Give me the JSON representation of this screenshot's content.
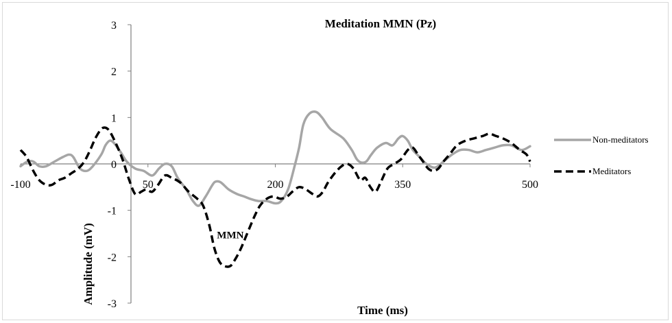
{
  "chart_data": {
    "type": "line",
    "title": "Meditation MMN (Pz)",
    "xlabel": "Time (ms)",
    "ylabel": "Amplitude (mV)",
    "xlim": [
      -100,
      500
    ],
    "ylim": [
      -3,
      3
    ],
    "x_ticks": [
      "-100",
      "50",
      "200",
      "350",
      "500"
    ],
    "x_tick_values": [
      -100,
      50,
      200,
      350,
      500
    ],
    "y_ticks": [
      "3",
      "2",
      "1",
      "0",
      "-1",
      "-2",
      "-3"
    ],
    "y_tick_values": [
      3,
      2,
      1,
      0,
      -1,
      -2,
      -3
    ],
    "grid": false,
    "legend_position": "right",
    "annotations": [
      {
        "text": "MMN",
        "x": 147,
        "y": -1.6
      }
    ],
    "series": [
      {
        "name": "Non-meditators",
        "color": "#a6a6a6",
        "style": "solid",
        "points": [
          [
            -100,
            -0.05
          ],
          [
            -92,
            0.05
          ],
          [
            -85,
            0.05
          ],
          [
            -78,
            -0.05
          ],
          [
            -70,
            -0.05
          ],
          [
            -60,
            0.05
          ],
          [
            -50,
            0.15
          ],
          [
            -43,
            0.2
          ],
          [
            -38,
            0.15
          ],
          [
            -30,
            -0.1
          ],
          [
            -22,
            -0.15
          ],
          [
            -15,
            -0.05
          ],
          [
            -5,
            0.2
          ],
          [
            0,
            0.4
          ],
          [
            5,
            0.5
          ],
          [
            10,
            0.45
          ],
          [
            18,
            0.25
          ],
          [
            25,
            0.05
          ],
          [
            35,
            -0.1
          ],
          [
            45,
            -0.15
          ],
          [
            55,
            -0.25
          ],
          [
            63,
            -0.1
          ],
          [
            70,
            0.0
          ],
          [
            78,
            -0.05
          ],
          [
            85,
            -0.3
          ],
          [
            95,
            -0.55
          ],
          [
            103,
            -0.8
          ],
          [
            110,
            -0.9
          ],
          [
            118,
            -0.7
          ],
          [
            126,
            -0.45
          ],
          [
            130,
            -0.38
          ],
          [
            136,
            -0.4
          ],
          [
            145,
            -0.55
          ],
          [
            155,
            -0.65
          ],
          [
            163,
            -0.7
          ],
          [
            170,
            -0.75
          ],
          [
            180,
            -0.8
          ],
          [
            190,
            -0.8
          ],
          [
            200,
            -0.85
          ],
          [
            207,
            -0.8
          ],
          [
            215,
            -0.55
          ],
          [
            222,
            -0.1
          ],
          [
            228,
            0.35
          ],
          [
            233,
            0.85
          ],
          [
            240,
            1.08
          ],
          [
            248,
            1.12
          ],
          [
            255,
            1.0
          ],
          [
            265,
            0.75
          ],
          [
            280,
            0.55
          ],
          [
            290,
            0.3
          ],
          [
            296,
            0.1
          ],
          [
            301,
            0.03
          ],
          [
            307,
            0.05
          ],
          [
            313,
            0.2
          ],
          [
            320,
            0.35
          ],
          [
            330,
            0.45
          ],
          [
            338,
            0.4
          ],
          [
            345,
            0.55
          ],
          [
            350,
            0.6
          ],
          [
            356,
            0.5
          ],
          [
            362,
            0.3
          ],
          [
            370,
            0.15
          ],
          [
            378,
            0.0
          ],
          [
            388,
            -0.08
          ],
          [
            398,
            0.05
          ],
          [
            408,
            0.2
          ],
          [
            418,
            0.3
          ],
          [
            428,
            0.3
          ],
          [
            438,
            0.25
          ],
          [
            448,
            0.3
          ],
          [
            458,
            0.35
          ],
          [
            468,
            0.4
          ],
          [
            478,
            0.4
          ],
          [
            490,
            0.3
          ],
          [
            500,
            0.38
          ]
        ]
      },
      {
        "name": "Meditators",
        "color": "#000000",
        "style": "dashed",
        "points": [
          [
            -100,
            0.3
          ],
          [
            -93,
            0.15
          ],
          [
            -85,
            -0.15
          ],
          [
            -78,
            -0.35
          ],
          [
            -70,
            -0.45
          ],
          [
            -63,
            -0.45
          ],
          [
            -55,
            -0.35
          ],
          [
            -48,
            -0.3
          ],
          [
            -40,
            -0.2
          ],
          [
            -32,
            -0.1
          ],
          [
            -25,
            0.05
          ],
          [
            -18,
            0.3
          ],
          [
            -12,
            0.55
          ],
          [
            -5,
            0.75
          ],
          [
            0,
            0.78
          ],
          [
            5,
            0.7
          ],
          [
            12,
            0.45
          ],
          [
            20,
            0.1
          ],
          [
            28,
            -0.35
          ],
          [
            35,
            -0.65
          ],
          [
            42,
            -0.6
          ],
          [
            48,
            -0.55
          ],
          [
            55,
            -0.6
          ],
          [
            62,
            -0.45
          ],
          [
            70,
            -0.25
          ],
          [
            78,
            -0.3
          ],
          [
            88,
            -0.4
          ],
          [
            98,
            -0.6
          ],
          [
            108,
            -0.75
          ],
          [
            115,
            -0.9
          ],
          [
            122,
            -1.3
          ],
          [
            128,
            -1.8
          ],
          [
            134,
            -2.1
          ],
          [
            140,
            -2.2
          ],
          [
            147,
            -2.2
          ],
          [
            153,
            -2.05
          ],
          [
            160,
            -1.8
          ],
          [
            168,
            -1.45
          ],
          [
            175,
            -1.15
          ],
          [
            182,
            -0.9
          ],
          [
            190,
            -0.75
          ],
          [
            198,
            -0.7
          ],
          [
            206,
            -0.75
          ],
          [
            214,
            -0.7
          ],
          [
            220,
            -0.6
          ],
          [
            228,
            -0.5
          ],
          [
            236,
            -0.55
          ],
          [
            244,
            -0.65
          ],
          [
            250,
            -0.7
          ],
          [
            256,
            -0.6
          ],
          [
            262,
            -0.4
          ],
          [
            270,
            -0.2
          ],
          [
            278,
            -0.05
          ],
          [
            285,
            0.0
          ],
          [
            292,
            -0.1
          ],
          [
            300,
            -0.35
          ],
          [
            306,
            -0.3
          ],
          [
            312,
            -0.5
          ],
          [
            318,
            -0.6
          ],
          [
            324,
            -0.4
          ],
          [
            332,
            -0.1
          ],
          [
            340,
            0.0
          ],
          [
            348,
            0.1
          ],
          [
            356,
            0.3
          ],
          [
            362,
            0.35
          ],
          [
            368,
            0.2
          ],
          [
            374,
            0.05
          ],
          [
            380,
            -0.1
          ],
          [
            386,
            -0.15
          ],
          [
            392,
            -0.1
          ],
          [
            398,
            0.05
          ],
          [
            405,
            0.2
          ],
          [
            414,
            0.4
          ],
          [
            424,
            0.5
          ],
          [
            434,
            0.55
          ],
          [
            444,
            0.6
          ],
          [
            452,
            0.65
          ],
          [
            460,
            0.6
          ],
          [
            468,
            0.55
          ],
          [
            478,
            0.45
          ],
          [
            488,
            0.3
          ],
          [
            496,
            0.2
          ],
          [
            500,
            0.05
          ]
        ]
      }
    ]
  }
}
